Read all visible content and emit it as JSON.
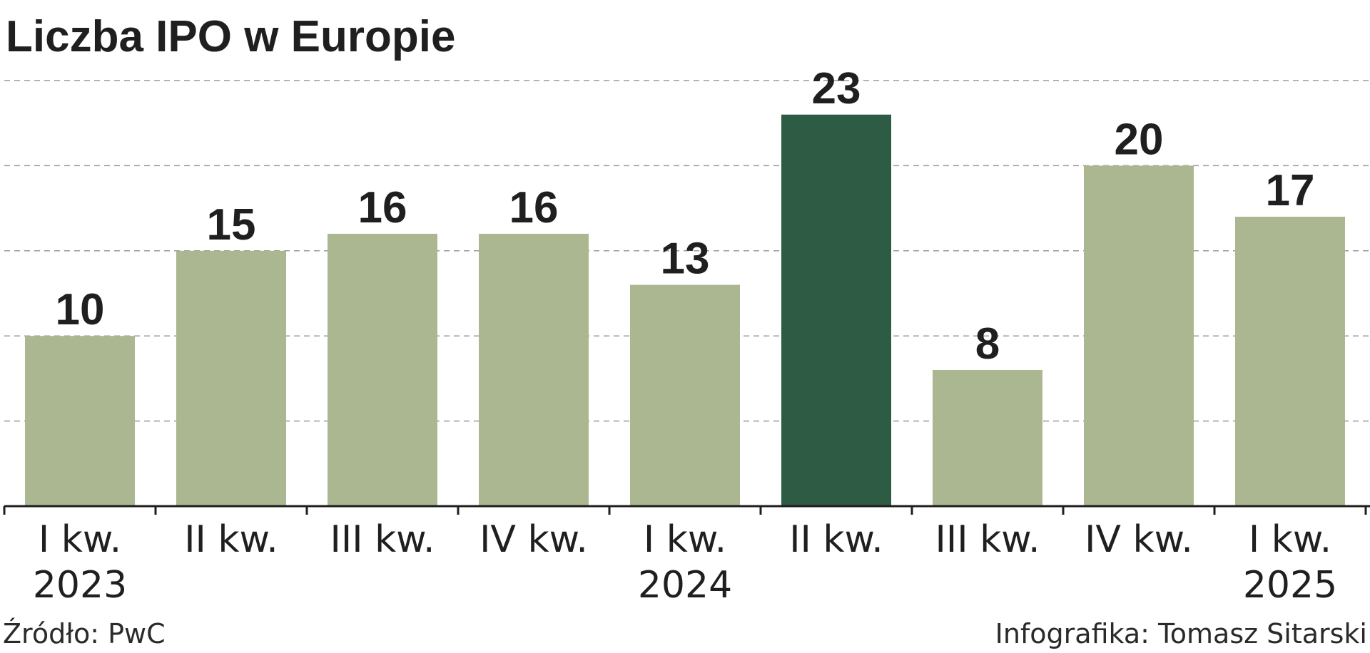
{
  "chart_data": {
    "type": "bar",
    "title": "Liczba IPO w Europie",
    "categories": [
      [
        "I kw.",
        "2023"
      ],
      [
        "II kw."
      ],
      [
        "III kw."
      ],
      [
        "IV kw."
      ],
      [
        "I kw.",
        "2024"
      ],
      [
        "II kw."
      ],
      [
        "III kw."
      ],
      [
        "IV kw."
      ],
      [
        "I kw.",
        "2025"
      ]
    ],
    "values": [
      10,
      15,
      16,
      16,
      13,
      23,
      8,
      20,
      17
    ],
    "value_labels": [
      "10",
      "15",
      "16",
      "16",
      "13",
      "23",
      "8",
      "20",
      "17"
    ],
    "highlight_index": 5,
    "xlabel": "",
    "ylabel": "",
    "ylim": [
      0,
      25
    ],
    "gridlines": [
      5,
      10,
      15,
      20,
      25
    ],
    "grid": true,
    "legend": "none",
    "colors": {
      "bar": "#abb790",
      "highlight": "#2e5b44"
    }
  },
  "footer": {
    "source": "Źródło: PwC",
    "credit": "Infografika: Tomasz Sitarski"
  }
}
